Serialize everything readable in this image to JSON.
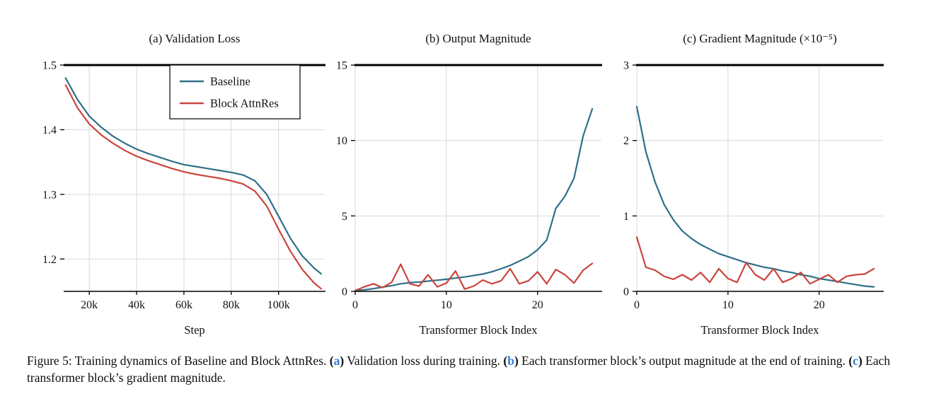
{
  "colors": {
    "baseline": "#2e7089",
    "attnres": "#c9463e",
    "grid": "#d8d8d8",
    "axis": "#000000",
    "link": "#2e7fe0"
  },
  "figure": {
    "caption_segments": [
      {
        "t": "Figure 5: Training dynamics of Baseline and Block AttnRes. ",
        "k": "plain"
      },
      {
        "t": "(",
        "k": "bold"
      },
      {
        "t": "a",
        "k": "link"
      },
      {
        "t": ")",
        "k": "bold"
      },
      {
        "t": " Validation loss during training. ",
        "k": "plain"
      },
      {
        "t": "(",
        "k": "bold"
      },
      {
        "t": "b",
        "k": "link"
      },
      {
        "t": ")",
        "k": "bold"
      },
      {
        "t": " Each transformer block’s output magnitude at the end of training. ",
        "k": "plain"
      },
      {
        "t": "(",
        "k": "bold"
      },
      {
        "t": "c",
        "k": "link"
      },
      {
        "t": ")",
        "k": "bold"
      },
      {
        "t": " Each transformer block’s gradient magnitude.",
        "k": "plain"
      }
    ]
  },
  "chart_data": [
    {
      "type": "line",
      "title": "(a) Validation Loss",
      "xlabel": "Step",
      "ylabel": "",
      "xlim": [
        9500,
        119500
      ],
      "ylim": [
        1.15,
        1.5
      ],
      "xticks": [
        20000,
        40000,
        60000,
        80000,
        100000
      ],
      "xtick_labels": [
        "20k",
        "40k",
        "60k",
        "80k",
        "100k"
      ],
      "yticks": [
        1.2,
        1.3,
        1.4,
        1.5
      ],
      "ytick_labels": [
        "1.2",
        "1.3",
        "1.4",
        "1.5"
      ],
      "grid": true,
      "legend": {
        "show": true,
        "position": "top-center"
      },
      "series": [
        {
          "name": "Baseline",
          "color_key": "baseline",
          "x": [
            10000,
            15000,
            20000,
            25000,
            30000,
            35000,
            40000,
            45000,
            50000,
            55000,
            60000,
            65000,
            70000,
            75000,
            80000,
            85000,
            90000,
            95000,
            100000,
            105000,
            110000,
            115000,
            118000
          ],
          "y": [
            1.48,
            1.447,
            1.421,
            1.404,
            1.39,
            1.379,
            1.37,
            1.363,
            1.357,
            1.351,
            1.346,
            1.343,
            1.34,
            1.337,
            1.334,
            1.33,
            1.321,
            1.3,
            1.266,
            1.232,
            1.205,
            1.186,
            1.177
          ]
        },
        {
          "name": "Block AttnRes",
          "color_key": "attnres",
          "x": [
            10000,
            15000,
            20000,
            25000,
            30000,
            35000,
            40000,
            45000,
            50000,
            55000,
            60000,
            65000,
            70000,
            75000,
            80000,
            85000,
            90000,
            95000,
            100000,
            105000,
            110000,
            115000,
            118000
          ],
          "y": [
            1.469,
            1.434,
            1.409,
            1.392,
            1.379,
            1.368,
            1.359,
            1.352,
            1.346,
            1.34,
            1.335,
            1.331,
            1.328,
            1.325,
            1.321,
            1.316,
            1.305,
            1.282,
            1.246,
            1.212,
            1.184,
            1.163,
            1.154
          ]
        }
      ]
    },
    {
      "type": "line",
      "title": "(b) Output Magnitude",
      "xlabel": "Transformer Block Index",
      "ylabel": "",
      "xlim": [
        0,
        27
      ],
      "ylim": [
        0,
        15
      ],
      "xticks": [
        0,
        10,
        20
      ],
      "xtick_labels": [
        "0",
        "10",
        "20"
      ],
      "yticks": [
        0,
        5,
        10,
        15
      ],
      "ytick_labels": [
        "0",
        "5",
        "10",
        "15"
      ],
      "grid": true,
      "legend": {
        "show": false
      },
      "x_is_block_index": true,
      "series": [
        {
          "name": "Baseline",
          "color_key": "baseline",
          "y": [
            0.05,
            0.1,
            0.18,
            0.28,
            0.38,
            0.5,
            0.58,
            0.62,
            0.68,
            0.74,
            0.8,
            0.88,
            0.95,
            1.05,
            1.15,
            1.3,
            1.5,
            1.72,
            2.0,
            2.3,
            2.75,
            3.4,
            5.5,
            6.3,
            7.5,
            10.3,
            12.1
          ]
        },
        {
          "name": "Block AttnRes",
          "color_key": "attnres",
          "y": [
            0.05,
            0.3,
            0.5,
            0.25,
            0.6,
            1.8,
            0.5,
            0.35,
            1.1,
            0.3,
            0.55,
            1.35,
            0.15,
            0.35,
            0.75,
            0.5,
            0.7,
            1.5,
            0.5,
            0.7,
            1.3,
            0.5,
            1.45,
            1.1,
            0.55,
            1.4,
            1.85
          ]
        }
      ]
    },
    {
      "type": "line",
      "title": "(c) Gradient Magnitude (×10⁻⁵)",
      "xlabel": "Transformer Block Index",
      "ylabel": "",
      "xlim": [
        0,
        27
      ],
      "ylim": [
        0,
        3
      ],
      "xticks": [
        0,
        10,
        20
      ],
      "xtick_labels": [
        "0",
        "10",
        "20"
      ],
      "yticks": [
        0,
        1,
        2,
        3
      ],
      "ytick_labels": [
        "0",
        "1",
        "2",
        "3"
      ],
      "grid": true,
      "legend": {
        "show": false
      },
      "x_is_block_index": true,
      "series": [
        {
          "name": "Baseline",
          "color_key": "baseline",
          "y": [
            2.45,
            1.85,
            1.45,
            1.15,
            0.95,
            0.8,
            0.7,
            0.62,
            0.56,
            0.5,
            0.46,
            0.42,
            0.38,
            0.35,
            0.32,
            0.3,
            0.27,
            0.25,
            0.22,
            0.2,
            0.17,
            0.15,
            0.13,
            0.11,
            0.09,
            0.07,
            0.06
          ]
        },
        {
          "name": "Block AttnRes",
          "color_key": "attnres",
          "y": [
            0.72,
            0.32,
            0.28,
            0.2,
            0.16,
            0.22,
            0.15,
            0.25,
            0.12,
            0.3,
            0.17,
            0.12,
            0.38,
            0.22,
            0.15,
            0.3,
            0.12,
            0.17,
            0.25,
            0.1,
            0.16,
            0.22,
            0.12,
            0.2,
            0.22,
            0.23,
            0.3
          ]
        }
      ]
    }
  ]
}
